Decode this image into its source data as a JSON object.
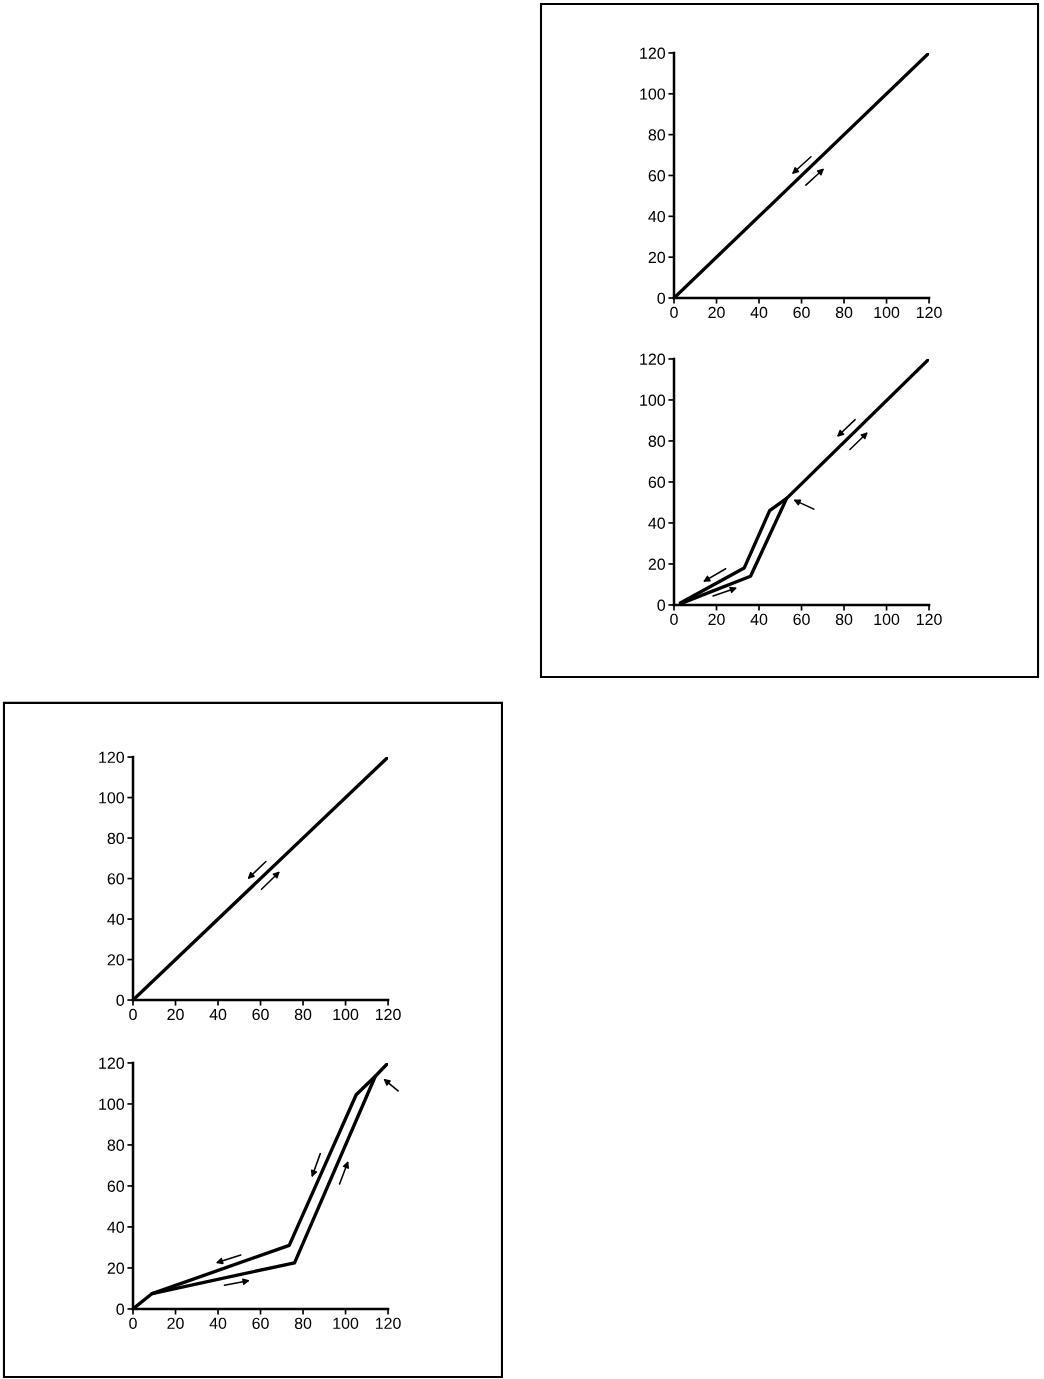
{
  "chart_data": [
    {
      "type": "line",
      "series": [
        {
          "color": "#000000",
          "x": [
            0,
            120
          ],
          "values": [
            0,
            120
          ]
        }
      ],
      "xlim": [
        0,
        120
      ],
      "ylim": [
        0,
        120
      ],
      "xticks": [
        0,
        20,
        40,
        60,
        80,
        100,
        120
      ],
      "yticks": [
        0,
        20,
        40,
        60,
        80,
        100,
        120
      ]
    },
    {
      "type": "line",
      "series": [
        {
          "color": "#000000",
          "x": [
            4,
            36,
            53,
            120
          ],
          "values": [
            1,
            14,
            52,
            120
          ]
        },
        {
          "color": "#000000",
          "x": [
            53,
            45,
            33,
            3
          ],
          "values": [
            52,
            46,
            18,
            1
          ]
        }
      ],
      "xlim": [
        0,
        120
      ],
      "ylim": [
        0,
        120
      ],
      "xticks": [
        0,
        20,
        40,
        60,
        80,
        100,
        120
      ],
      "yticks": [
        0,
        20,
        40,
        60,
        80,
        100,
        120
      ]
    },
    {
      "type": "line",
      "series": [
        {
          "color": "#000000",
          "x": [
            0,
            120
          ],
          "values": [
            0,
            120
          ]
        }
      ],
      "xlim": [
        0,
        120
      ],
      "ylim": [
        0,
        120
      ],
      "xticks": [
        0,
        20,
        40,
        60,
        80,
        100,
        120
      ],
      "yticks": [
        0,
        20,
        40,
        60,
        80,
        100,
        120
      ]
    },
    {
      "type": "line",
      "series": [
        {
          "color": "#000000",
          "x": [
            0,
            9,
            76,
            114,
            120
          ],
          "values": [
            0,
            7.5,
            22.5,
            113.5,
            120
          ]
        },
        {
          "color": "#000000",
          "x": [
            114,
            105,
            73.5,
            9
          ],
          "values": [
            113.5,
            104.5,
            31,
            7.5
          ]
        }
      ],
      "xlim": [
        0,
        120
      ],
      "ylim": [
        0,
        120
      ],
      "xticks": [
        0,
        20,
        40,
        60,
        80,
        100,
        120
      ],
      "yticks": [
        0,
        20,
        40,
        60,
        80,
        100,
        120
      ]
    }
  ]
}
